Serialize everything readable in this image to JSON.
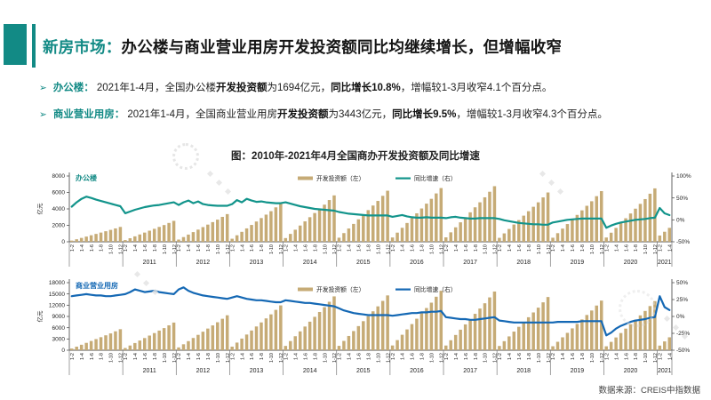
{
  "header": {
    "tag": "新房市场：",
    "title": "办公楼与商业营业用房开发投资额同比均继续增长，但增幅收窄"
  },
  "bullet_icon": "➢",
  "bullets": [
    {
      "label": "办公楼：",
      "pre": "2021年1-4月，全国办公楼",
      "bold1": "开发投资额",
      "mid": "为1694亿元，",
      "bold2": "同比增长10.8%",
      "post": "，增幅较1-3月收窄4.1个百分点。"
    },
    {
      "label": "商业营业用房：",
      "pre": "2021年1-4月，全国商业营业用房",
      "bold1": "开发投资额",
      "mid": "为3443亿元，",
      "bold2": "同比增长9.5%",
      "post": "，增幅较1-3月收窄4.3个百分点。"
    }
  ],
  "figure_title": "图：2010年-2021年4月全国商办开发投资额及同比增速",
  "source": "数据来源：CREIS中指数据",
  "colors": {
    "accent_teal": "#128a85",
    "bar_tan": "#c6ab76",
    "office_line_teal": "#12948b",
    "commercial_line_blue": "#1468b4"
  },
  "chart_data": [
    {
      "type": "bar",
      "subtype": "bar+line combo, cumulative monthly investment bars with YoY growth line",
      "name": "办公楼",
      "unit": "亿元",
      "legend": [
        "开发投资额（左）",
        "同比增速（右）"
      ],
      "legend_position": "top",
      "grid": "off",
      "bar_color": "#c6ab76",
      "line_color": "#12948b",
      "label_color": "#128a85",
      "years": [
        "2010",
        "2011",
        "2012",
        "2013",
        "2014",
        "2015",
        "2016",
        "2017",
        "2018",
        "2019",
        "2020",
        "2021"
      ],
      "x_tick_labels": [
        "1-2",
        "1-4",
        "1-6",
        "1-8",
        "1-10",
        "1-12"
      ],
      "left_axis": {
        "label": "亿元",
        "ticks": [
          0,
          2000,
          4000,
          6000,
          8000
        ],
        "max": 8000
      },
      "right_axis": {
        "ticks_pct": [
          100,
          50,
          0,
          -50
        ],
        "min": -50,
        "max": 100
      },
      "bars_by_year": [
        [
          145,
          307,
          470,
          632,
          795,
          958,
          1120,
          1283,
          1446,
          1626,
          1807
        ],
        [
          204,
          432,
          661,
          890,
          1119,
          1348,
          1577,
          1806,
          2035,
          2290,
          2544
        ],
        [
          269,
          572,
          875,
          1178,
          1481,
          1785,
          2088,
          2391,
          2694,
          3030,
          3367
        ],
        [
          372,
          791,
          1210,
          1628,
          2047,
          2466,
          2884,
          3303,
          3722,
          4187,
          4652
        ],
        [
          451,
          959,
          1467,
          1974,
          2482,
          2990,
          3497,
          4005,
          4513,
          5077,
          5641
        ],
        [
          497,
          1056,
          1615,
          2174,
          2732,
          3291,
          3850,
          4409,
          4968,
          5589,
          6210
        ],
        [
          523,
          1111,
          1699,
          2287,
          2875,
          3462,
          4050,
          4638,
          5226,
          5880,
          6533
        ],
        [
          541,
          1149,
          1758,
          2366,
          2975,
          3583,
          4192,
          4800,
          5409,
          6085,
          6761
        ],
        [
          480,
          1019,
          1559,
          2099,
          2638,
          3178,
          3718,
          4257,
          4797,
          5396,
          5996
        ],
        [
          493,
          1048,
          1602,
          2157,
          2712,
          3266,
          3821,
          4376,
          4930,
          5547,
          6163
        ],
        [
          520,
          1104,
          1688,
          2273,
          2857,
          3442,
          4026,
          4611,
          5195,
          5845,
          6494
        ],
        [
          760,
          1220,
          1694
        ]
      ],
      "line_pct_by_year": [
        [
          30,
          40,
          48,
          53,
          50,
          46,
          43,
          40,
          37,
          34,
          31
        ],
        [
          15,
          19,
          23,
          26,
          29,
          31,
          33,
          34,
          36,
          38,
          40
        ],
        [
          34,
          40,
          44,
          38,
          42,
          36,
          34,
          33,
          32,
          32,
          32
        ],
        [
          36,
          45,
          40,
          48,
          44,
          41,
          42,
          40,
          39,
          38,
          38
        ],
        [
          40,
          37,
          34,
          31,
          29,
          27,
          25,
          24,
          23,
          22,
          21
        ],
        [
          18,
          16,
          14,
          13,
          12,
          11,
          10,
          10,
          10,
          10,
          10
        ],
        [
          7,
          9,
          11,
          8,
          6,
          5,
          5,
          6,
          5,
          5,
          5
        ],
        [
          4,
          6,
          7,
          5,
          4,
          3,
          3,
          4,
          4,
          4,
          4
        ],
        [
          2,
          -1,
          -3,
          -5,
          -7,
          -8,
          -9,
          -10,
          -10,
          -11,
          -11
        ],
        [
          -6,
          -4,
          -2,
          0,
          1,
          2,
          3,
          3,
          3,
          3,
          3
        ],
        [
          -18,
          -13,
          -9,
          -6,
          -4,
          -2,
          0,
          1,
          2,
          4,
          5
        ],
        [
          27,
          14.9,
          10.8
        ]
      ]
    },
    {
      "type": "bar",
      "subtype": "bar+line combo, cumulative monthly investment bars with YoY growth line",
      "name": "商业营业用房",
      "unit": "亿元",
      "legend": [
        "开发投资额（左）",
        "同比增速（右）"
      ],
      "legend_position": "top",
      "grid": "off",
      "bar_color": "#c6ab76",
      "line_color": "#1468b4",
      "label_color": "#1468b4",
      "years": [
        "2010",
        "2011",
        "2012",
        "2013",
        "2014",
        "2015",
        "2016",
        "2017",
        "2018",
        "2019",
        "2020",
        "2021"
      ],
      "x_tick_labels": [
        "1-2",
        "1-4",
        "1-6",
        "1-8",
        "1-10",
        "1-12"
      ],
      "left_axis": {
        "label": "亿元",
        "ticks": [
          0,
          3000,
          6000,
          9000,
          12000,
          15000,
          18000
        ],
        "max": 18000
      },
      "right_axis": {
        "ticks_pct": [
          50,
          25,
          0,
          -25,
          -50
        ],
        "min": -50,
        "max": 50
      },
      "bars_by_year": [
        [
          448,
          952,
          1456,
          1960,
          2464,
          2967,
          3471,
          3975,
          4479,
          5039,
          5599
        ],
        [
          590,
          1253,
          1916,
          2580,
          3243,
          3906,
          4569,
          5233,
          5896,
          6633,
          7370
        ],
        [
          745,
          1583,
          2421,
          3259,
          4097,
          4935,
          5773,
          6612,
          7450,
          8381,
          9312
        ],
        [
          956,
          2031,
          3106,
          4181,
          5256,
          6331,
          7406,
          8481,
          9556,
          10751,
          11945
        ],
        [
          1148,
          2439,
          3730,
          5021,
          6312,
          7603,
          8895,
          10186,
          11477,
          12911,
          14346
        ],
        [
          1169,
          2483,
          3798,
          5112,
          6427,
          7742,
          9056,
          10371,
          11686,
          13147,
          14607
        ],
        [
          1267,
          2692,
          4118,
          5543,
          6969,
          8394,
          9820,
          11245,
          12670,
          14254,
          15838
        ],
        [
          1251,
          2659,
          4066,
          5474,
          6882,
          8289,
          9697,
          11104,
          12512,
          14076,
          15640
        ],
        [
          1134,
          2410,
          3686,
          4962,
          6238,
          7514,
          8790,
          10066,
          11342,
          12759,
          14177
        ],
        [
          1058,
          2248,
          3439,
          4629,
          5819,
          7010,
          8200,
          9390,
          10581,
          11904,
          13226
        ],
        [
          1046,
          2223,
          3400,
          4577,
          5753,
          6930,
          8107,
          9284,
          10461,
          11769,
          13076
        ],
        [
          1230,
          2350,
          3443
        ]
      ],
      "line_pct_by_year": [
        [
          30,
          31,
          32,
          33,
          32,
          31,
          31,
          30,
          30,
          31,
          32
        ],
        [
          33,
          36,
          40,
          38,
          36,
          37,
          38,
          36,
          35,
          34,
          33
        ],
        [
          40,
          43,
          38,
          35,
          33,
          31,
          30,
          29,
          28,
          27,
          26
        ],
        [
          28,
          30,
          28,
          26,
          25,
          24,
          24,
          23,
          22,
          21,
          21
        ],
        [
          24,
          23,
          22,
          21,
          20,
          20,
          19,
          18,
          17,
          16,
          15
        ],
        [
          12,
          9,
          7,
          5,
          4,
          3,
          2,
          2,
          2,
          2,
          2
        ],
        [
          1,
          2,
          3,
          4,
          5,
          5,
          6,
          6,
          7,
          7,
          8
        ],
        [
          -1,
          -2,
          -3,
          -4,
          -4,
          -5,
          -5,
          -4,
          -3,
          -2,
          -1
        ],
        [
          -6,
          -7,
          -8,
          -9,
          -9,
          -9,
          -9,
          -9,
          -9,
          -9,
          -9
        ],
        [
          -9,
          -8,
          -8,
          -8,
          -8,
          -8,
          -7,
          -7,
          -7,
          -7,
          -7
        ],
        [
          -28,
          -24,
          -18,
          -14,
          -11,
          -8,
          -6,
          -5,
          -4,
          -2,
          -1
        ],
        [
          30,
          13.8,
          9.5
        ]
      ]
    }
  ]
}
